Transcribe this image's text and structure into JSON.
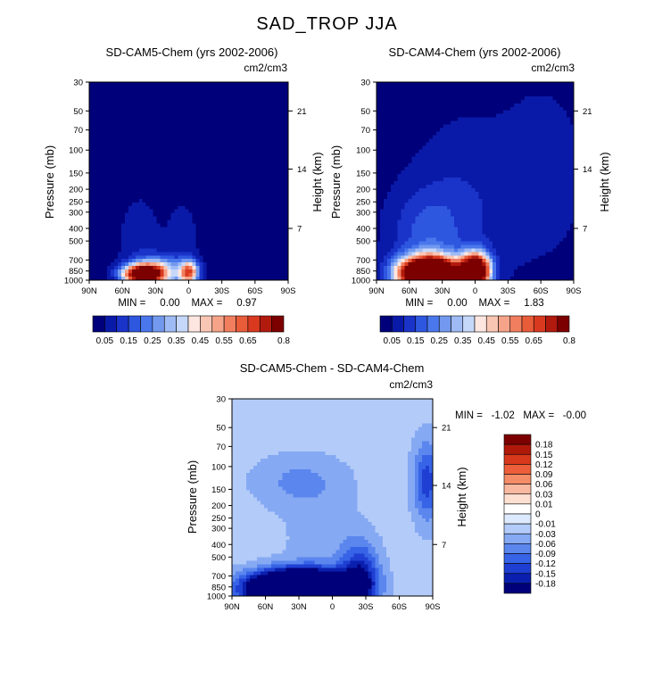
{
  "figure_title": "SAD_TROP JJA",
  "colors": {
    "seq": [
      "#00007a",
      "#0a1aa8",
      "#1a33c9",
      "#2e57e0",
      "#4a78ec",
      "#7399ef",
      "#9fbbf5",
      "#c6d8fa",
      "#fde6e0",
      "#f9c6b4",
      "#f6a489",
      "#f17f5f",
      "#e95c3a",
      "#d93a1f",
      "#b21a0e",
      "#7d0000"
    ],
    "div": [
      "#00007a",
      "#0a1fae",
      "#1f3fd3",
      "#3763e6",
      "#5a86ee",
      "#86a9f3",
      "#b3cbf8",
      "#dde9fc",
      "#ffffff",
      "#fde0d2",
      "#f9b8a0",
      "#f48c68",
      "#ec5f3a",
      "#d8381c",
      "#b0190a",
      "#7d0000"
    ]
  },
  "chart_data": [
    {
      "type": "heatmap",
      "title": "SD-CAM5-Chem (yrs 2002-2006)",
      "units": "cm2/cm3",
      "ylabel": "Pressure (mb)",
      "y2label": "Height (km)",
      "x_ticks": [
        "90N",
        "60N",
        "30N",
        "0",
        "30S",
        "60S",
        "90S"
      ],
      "x_values": [
        90,
        60,
        30,
        0,
        -30,
        -60,
        -90
      ],
      "y_ticks": [
        "30",
        "50",
        "70",
        "100",
        "150",
        "200",
        "250",
        "300",
        "400",
        "500",
        "700",
        "850",
        "1000"
      ],
      "y_values": [
        30,
        50,
        70,
        100,
        150,
        200,
        250,
        300,
        400,
        500,
        700,
        850,
        1000
      ],
      "y2_ticks": [
        "21",
        "14",
        "7"
      ],
      "y2_values_pressure": [
        50,
        140,
        400
      ],
      "ylim": [
        1000,
        30
      ],
      "xlim": [
        90,
        -90
      ],
      "log_y": true,
      "stats": "MIN =     0.00    MAX =     0.97",
      "colorbar_labels": [
        "0.05",
        "0.15",
        "0.25",
        "0.35",
        "0.45",
        "0.55",
        "0.65",
        "0.8"
      ],
      "colorbar_levels": [
        0.05,
        0.1,
        0.15,
        0.2,
        0.25,
        0.3,
        0.35,
        0.4,
        0.45,
        0.5,
        0.55,
        0.6,
        0.65,
        0.7,
        0.8
      ],
      "field": {
        "background": 0.02,
        "features": [
          {
            "lat": 42,
            "p": 900,
            "amp": 0.95,
            "dlat": 12,
            "dlogp": 0.05
          },
          {
            "lat": 28,
            "p": 860,
            "amp": 0.35,
            "dlat": 14,
            "dlogp": 0.08
          },
          {
            "lat": 0,
            "p": 870,
            "amp": 0.6,
            "dlat": 6,
            "dlogp": 0.06
          },
          {
            "lat": 45,
            "p": 550,
            "amp": 0.06,
            "dlat": 14,
            "dlogp": 0.3
          },
          {
            "lat": 5,
            "p": 550,
            "amp": 0.05,
            "dlat": 12,
            "dlogp": 0.3
          }
        ]
      }
    },
    {
      "type": "heatmap",
      "title": "SD-CAM4-Chem (yrs 2002-2006)",
      "units": "cm2/cm3",
      "ylabel": "Pressure (mb)",
      "y2label": "Height (km)",
      "x_ticks": [
        "90N",
        "60N",
        "30N",
        "0",
        "30S",
        "60S",
        "90S"
      ],
      "x_values": [
        90,
        60,
        30,
        0,
        -30,
        -60,
        -90
      ],
      "y_ticks": [
        "30",
        "50",
        "70",
        "100",
        "150",
        "200",
        "250",
        "300",
        "400",
        "500",
        "700",
        "850",
        "1000"
      ],
      "y_values": [
        30,
        50,
        70,
        100,
        150,
        200,
        250,
        300,
        400,
        500,
        700,
        850,
        1000
      ],
      "y2_ticks": [
        "21",
        "14",
        "7"
      ],
      "y2_values_pressure": [
        50,
        140,
        400
      ],
      "ylim": [
        1000,
        30
      ],
      "xlim": [
        90,
        -90
      ],
      "log_y": true,
      "stats": "MIN =     0.00    MAX =     1.83",
      "colorbar_labels": [
        "0.05",
        "0.15",
        "0.25",
        "0.35",
        "0.45",
        "0.55",
        "0.65",
        "0.8"
      ],
      "colorbar_levels": [
        0.05,
        0.1,
        0.15,
        0.2,
        0.25,
        0.3,
        0.35,
        0.4,
        0.45,
        0.5,
        0.55,
        0.6,
        0.65,
        0.7,
        0.8
      ],
      "field": {
        "background": 0.03,
        "features": [
          {
            "lat": 42,
            "p": 900,
            "amp": 1.6,
            "dlat": 18,
            "dlogp": 0.09
          },
          {
            "lat": 0,
            "p": 850,
            "amp": 1.2,
            "dlat": 9,
            "dlogp": 0.09
          },
          {
            "lat": 45,
            "p": 450,
            "amp": 0.12,
            "dlat": 22,
            "dlogp": 0.25
          },
          {
            "lat": 10,
            "p": 300,
            "amp": 0.07,
            "dlat": 30,
            "dlogp": 0.45
          },
          {
            "lat": -60,
            "p": 150,
            "amp": 0.06,
            "dlat": 25,
            "dlogp": 0.4
          }
        ]
      }
    },
    {
      "type": "heatmap",
      "title": "SD-CAM5-Chem - SD-CAM4-Chem",
      "units": "cm2/cm3",
      "ylabel": "Pressure (mb)",
      "y2label": "Height (km)",
      "x_ticks": [
        "90N",
        "60N",
        "30N",
        "0",
        "30S",
        "60S",
        "90S"
      ],
      "x_values": [
        90,
        60,
        30,
        0,
        -30,
        -60,
        -90
      ],
      "y_ticks": [
        "30",
        "50",
        "70",
        "100",
        "150",
        "200",
        "250",
        "300",
        "400",
        "500",
        "700",
        "850",
        "1000"
      ],
      "y_values": [
        30,
        50,
        70,
        100,
        150,
        200,
        250,
        300,
        400,
        500,
        700,
        850,
        1000
      ],
      "y2_ticks": [
        "21",
        "14",
        "7"
      ],
      "y2_values_pressure": [
        50,
        140,
        400
      ],
      "ylim": [
        1000,
        30
      ],
      "xlim": [
        90,
        -90
      ],
      "log_y": true,
      "stats": "MIN =   -1.02   MAX =   -0.00",
      "colorbar_labels": [
        "0.18",
        "0.15",
        "0.12",
        "0.09",
        "0.06",
        "0.03",
        "0.01",
        "0",
        "-0.01",
        "-0.03",
        "-0.06",
        "-0.09",
        "-0.12",
        "-0.15",
        "-0.18"
      ],
      "colorbar_levels": [
        -0.18,
        -0.15,
        -0.12,
        -0.09,
        -0.06,
        -0.03,
        -0.01,
        0,
        0.01,
        0.03,
        0.06,
        0.09,
        0.12,
        0.15,
        0.18
      ],
      "field": {
        "background": -0.015,
        "features": [
          {
            "lat": 30,
            "p": 870,
            "amp": -0.6,
            "dlat": 30,
            "dlogp": 0.09
          },
          {
            "lat": -25,
            "p": 700,
            "amp": -0.15,
            "dlat": 12,
            "dlogp": 0.18
          },
          {
            "lat": 30,
            "p": 130,
            "amp": -0.05,
            "dlat": 30,
            "dlogp": 0.15
          },
          {
            "lat": -85,
            "p": 130,
            "amp": -0.12,
            "dlat": 9,
            "dlogp": 0.22
          },
          {
            "lat": 10,
            "p": 400,
            "amp": -0.03,
            "dlat": 25,
            "dlogp": 0.3
          },
          {
            "lat": 10,
            "p": 230,
            "amp": 0.012,
            "dlat": 8,
            "dlogp": 0.07
          }
        ]
      }
    }
  ]
}
